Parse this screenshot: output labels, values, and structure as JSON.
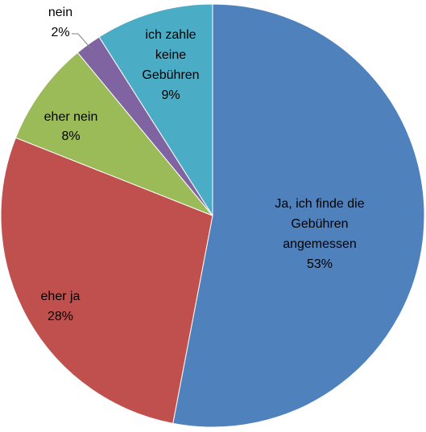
{
  "chart_data": {
    "type": "pie",
    "title": "",
    "slices": [
      {
        "label_lines": [
          "Ja, ich finde die",
          "Gebühren",
          "angemessen"
        ],
        "percent_label": "53%",
        "value": 53,
        "color": "#4F81BD"
      },
      {
        "label_lines": [
          "eher ja"
        ],
        "percent_label": "28%",
        "value": 28,
        "color": "#C0504D"
      },
      {
        "label_lines": [
          "eher nein"
        ],
        "percent_label": "8%",
        "value": 8,
        "color": "#9BBB59"
      },
      {
        "label_lines": [
          "nein"
        ],
        "percent_label": "2%",
        "value": 2,
        "color": "#8064A2"
      },
      {
        "label_lines": [
          "ich zahle",
          "keine",
          "Gebühren"
        ],
        "percent_label": "9%",
        "value": 9,
        "color": "#4BACC6"
      }
    ],
    "start_angle": "12 o'clock",
    "direction": "clockwise",
    "leader_line_on": [
      "nein"
    ]
  }
}
